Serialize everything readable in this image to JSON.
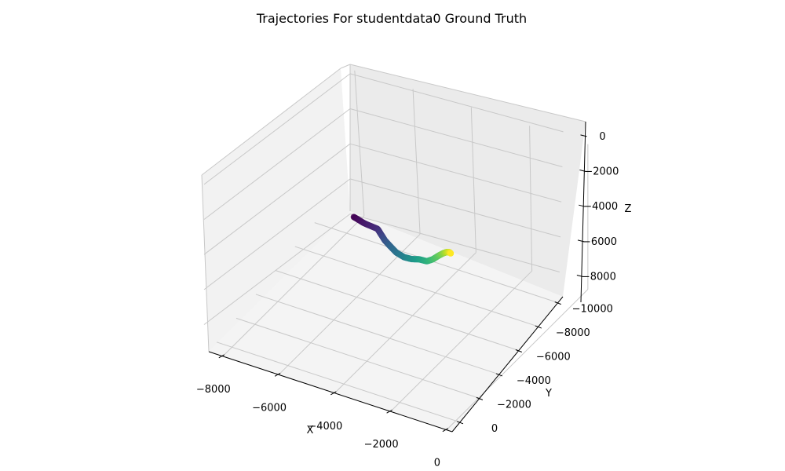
{
  "chart_data": {
    "type": "scatter",
    "projection": "3d",
    "title": "Trajectories For studentdata0 Ground Truth",
    "xlabel": "X",
    "ylabel": "Y",
    "zlabel": "Z",
    "xlim": [
      -8500,
      200
    ],
    "ylim": [
      -10500,
      800
    ],
    "zlim": [
      -9500,
      800
    ],
    "x_ticks": [
      -8000,
      -6000,
      -4000,
      -2000,
      0
    ],
    "y_ticks": [
      0,
      -2000,
      -4000,
      -6000,
      -8000,
      -10000
    ],
    "z_ticks": [
      0,
      -2000,
      -4000,
      -6000,
      -8000
    ],
    "x_tick_labels": [
      "−8000",
      "−6000",
      "−4000",
      "−2000",
      "0"
    ],
    "y_tick_labels": [
      "0",
      "−2000",
      "−4000",
      "−6000",
      "−8000",
      "−10000"
    ],
    "z_tick_labels": [
      "0",
      "−2000",
      "−4000",
      "−6000",
      "−8000"
    ],
    "colormap": "viridis",
    "color_start": "#440154",
    "color_end": "#fde725",
    "grid": true,
    "pane_color": "#f2f2f2",
    "series": [
      {
        "points": [
          {
            "x": -8000,
            "y": -9700,
            "z": -9000
          },
          {
            "x": -7300,
            "y": -9000,
            "z": -8500
          },
          {
            "x": -6500,
            "y": -8300,
            "z": -7900
          },
          {
            "x": -6000,
            "y": -7500,
            "z": -7400
          },
          {
            "x": -5500,
            "y": -6700,
            "z": -6900
          },
          {
            "x": -5000,
            "y": -6000,
            "z": -6450
          },
          {
            "x": -4400,
            "y": -5200,
            "z": -5950
          },
          {
            "x": -3800,
            "y": -4500,
            "z": -5400
          },
          {
            "x": -3200,
            "y": -3800,
            "z": -4700
          },
          {
            "x": -2600,
            "y": -3100,
            "z": -3900
          },
          {
            "x": -2000,
            "y": -2400,
            "z": -3200
          },
          {
            "x": -1500,
            "y": -1800,
            "z": -2400
          },
          {
            "x": -1000,
            "y": -1200,
            "z": -1500
          },
          {
            "x": -600,
            "y": -700,
            "z": -800
          },
          {
            "x": -300,
            "y": -300,
            "z": -300
          },
          {
            "x": -100,
            "y": -100,
            "z": -50
          },
          {
            "x": 0,
            "y": 0,
            "z": 0
          }
        ]
      }
    ]
  }
}
